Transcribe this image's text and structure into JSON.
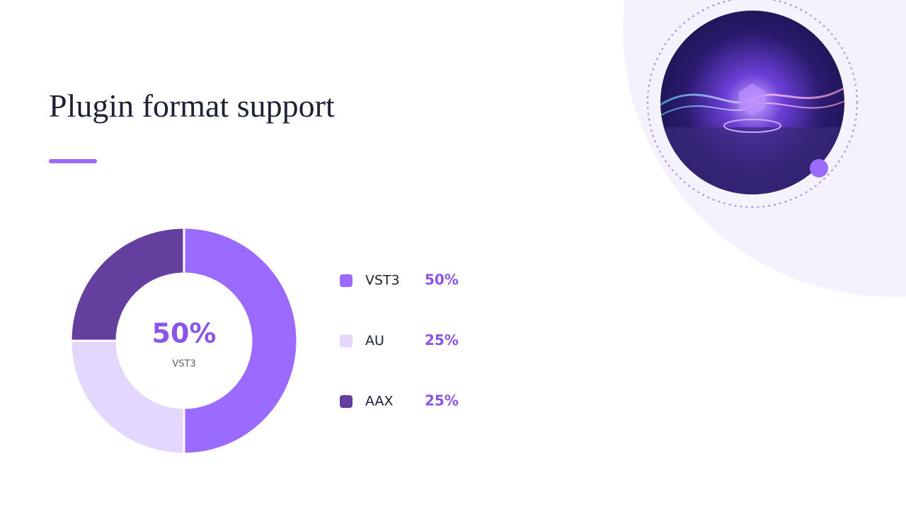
{
  "chart_data": {
    "type": "pie",
    "title": "Plugin format support",
    "categories": [
      "VST3",
      "AU",
      "AAX"
    ],
    "values": [
      50,
      25,
      25
    ],
    "value_labels": [
      "50%",
      "25%",
      "25%"
    ],
    "colors": [
      "#9b6bff",
      "#e3d7fd",
      "#653f9e"
    ]
  }
}
